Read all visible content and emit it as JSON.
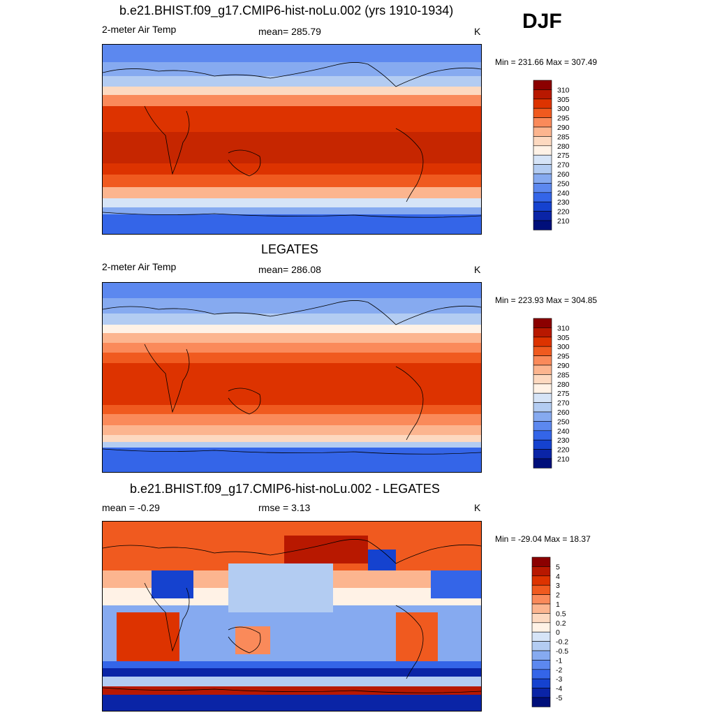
{
  "season": "DJF",
  "panels": [
    {
      "title": "b.e21.BHIST.f09_g17.CMIP6-hist-noLu.002 (yrs 1910-1934)",
      "left_label": "2-meter Air Temp",
      "mid_label": "mean= 285.79",
      "units": "K",
      "minmax": "Min = 231.66 Max = 307.49",
      "colorbar_ticks": [
        "310",
        "305",
        "300",
        "295",
        "290",
        "285",
        "280",
        "275",
        "270",
        "260",
        "250",
        "240",
        "230",
        "220",
        "210"
      ]
    },
    {
      "title": "LEGATES",
      "left_label": "2-meter Air Temp",
      "mid_label": "mean= 286.08",
      "units": "K",
      "minmax": "Min = 223.93 Max = 304.85",
      "colorbar_ticks": [
        "310",
        "305",
        "300",
        "295",
        "290",
        "285",
        "280",
        "275",
        "270",
        "260",
        "250",
        "240",
        "230",
        "220",
        "210"
      ]
    },
    {
      "title": "b.e21.BHIST.f09_g17.CMIP6-hist-noLu.002 - LEGATES",
      "left_label": "mean =  -0.29",
      "mid_label": "rmse =   3.13",
      "units": "K",
      "minmax": "Min = -29.04 Max =  18.37",
      "colorbar_ticks": [
        "5",
        "4",
        "3",
        "2",
        "1",
        "0.5",
        "0.2",
        "0",
        "-0.2",
        "-0.5",
        "-1",
        "-2",
        "-3",
        "-4",
        "-5"
      ]
    }
  ],
  "colors": {
    "temp_scale": [
      "#8b0000",
      "#b81800",
      "#dd3300",
      "#f05a1f",
      "#fa8a5a",
      "#fcb58f",
      "#fdd9c0",
      "#fff2e6",
      "#d6e4f7",
      "#b3ccf2",
      "#86aaf0",
      "#5c88ef",
      "#3465e8",
      "#1542cf",
      "#0a24a6",
      "#000f7a"
    ],
    "diff_scale": [
      "#8b0000",
      "#b81800",
      "#dd3300",
      "#f05a1f",
      "#fa8a5a",
      "#fcb58f",
      "#fdd9c0",
      "#fff2e6",
      "#d6e4f7",
      "#b3ccf2",
      "#86aaf0",
      "#5c88ef",
      "#3465e8",
      "#1542cf",
      "#0a24a6",
      "#000f7a"
    ],
    "coastline": "#000000"
  }
}
